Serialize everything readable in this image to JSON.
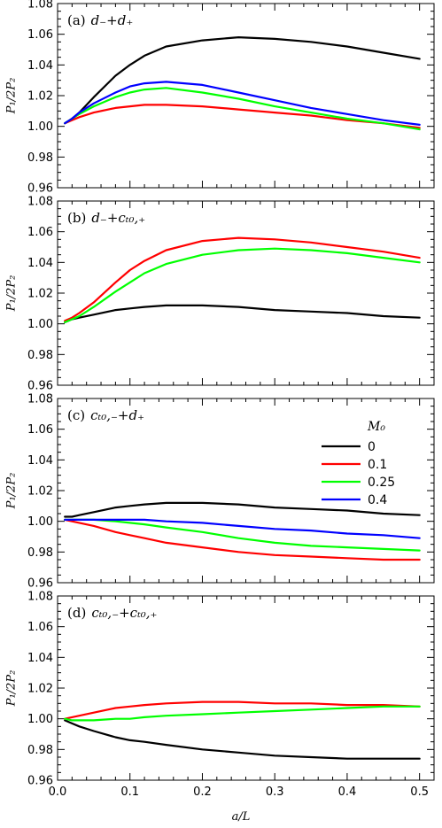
{
  "figure": {
    "xlabel": "a/L",
    "ylabel": "P₁/2P₂",
    "legend_title": "M₀"
  },
  "series_styles": [
    {
      "name": "0",
      "color": "#000000"
    },
    {
      "name": "0.1",
      "color": "#ff0000"
    },
    {
      "name": "0.25",
      "color": "#00ff00"
    },
    {
      "name": "0.4",
      "color": "#0000ff"
    }
  ],
  "chart_data": [
    {
      "type": "line",
      "panel_label": "(a)",
      "title": "d₋+d₊",
      "xlabel": "",
      "ylabel": "P₁/2P₂",
      "xlim": [
        0.0,
        0.52
      ],
      "ylim": [
        0.96,
        1.08
      ],
      "xticks": [
        0.0,
        0.1,
        0.2,
        0.3,
        0.4,
        0.5
      ],
      "yticks": [
        0.96,
        0.98,
        1.0,
        1.02,
        1.04,
        1.06,
        1.08
      ],
      "x": [
        0.01,
        0.02,
        0.03,
        0.05,
        0.08,
        0.1,
        0.12,
        0.15,
        0.2,
        0.25,
        0.3,
        0.35,
        0.4,
        0.45,
        0.5
      ],
      "series": [
        {
          "name": "0",
          "values": [
            1.002,
            1.005,
            1.009,
            1.019,
            1.033,
            1.04,
            1.046,
            1.052,
            1.056,
            1.058,
            1.057,
            1.055,
            1.052,
            1.048,
            1.044
          ]
        },
        {
          "name": "0.1",
          "values": [
            1.002,
            1.004,
            1.006,
            1.009,
            1.012,
            1.013,
            1.014,
            1.014,
            1.013,
            1.011,
            1.009,
            1.007,
            1.004,
            1.002,
            0.999
          ]
        },
        {
          "name": "0.25",
          "values": [
            1.002,
            1.005,
            1.008,
            1.013,
            1.019,
            1.022,
            1.024,
            1.025,
            1.022,
            1.018,
            1.013,
            1.009,
            1.005,
            1.002,
            0.998
          ]
        },
        {
          "name": "0.4",
          "values": [
            1.002,
            1.005,
            1.009,
            1.015,
            1.022,
            1.026,
            1.028,
            1.029,
            1.027,
            1.022,
            1.017,
            1.012,
            1.008,
            1.004,
            1.001
          ]
        }
      ]
    },
    {
      "type": "line",
      "panel_label": "(b)",
      "title": "d₋+cₜ₀,₊",
      "xlabel": "",
      "ylabel": "P₁/2P₂",
      "xlim": [
        0.0,
        0.52
      ],
      "ylim": [
        0.96,
        1.08
      ],
      "xticks": [
        0.0,
        0.1,
        0.2,
        0.3,
        0.4,
        0.5
      ],
      "yticks": [
        0.96,
        0.98,
        1.0,
        1.02,
        1.04,
        1.06,
        1.08
      ],
      "x": [
        0.01,
        0.02,
        0.03,
        0.05,
        0.08,
        0.1,
        0.12,
        0.15,
        0.2,
        0.25,
        0.3,
        0.35,
        0.4,
        0.45,
        0.5
      ],
      "series": [
        {
          "name": "0",
          "values": [
            1.001,
            1.003,
            1.004,
            1.006,
            1.009,
            1.01,
            1.011,
            1.012,
            1.012,
            1.011,
            1.009,
            1.008,
            1.007,
            1.005,
            1.004
          ]
        },
        {
          "name": "0.1",
          "values": [
            1.002,
            1.004,
            1.007,
            1.014,
            1.027,
            1.035,
            1.041,
            1.048,
            1.054,
            1.056,
            1.055,
            1.053,
            1.05,
            1.047,
            1.043
          ]
        },
        {
          "name": "0.25",
          "values": [
            1.001,
            1.003,
            1.005,
            1.011,
            1.021,
            1.027,
            1.033,
            1.039,
            1.045,
            1.048,
            1.049,
            1.048,
            1.046,
            1.043,
            1.04
          ]
        }
      ]
    },
    {
      "type": "line",
      "panel_label": "(c)",
      "title": "cₜ₀,₋+d₊",
      "xlabel": "",
      "ylabel": "P₁/2P₂",
      "xlim": [
        0.0,
        0.52
      ],
      "ylim": [
        0.96,
        1.08
      ],
      "xticks": [
        0.0,
        0.1,
        0.2,
        0.3,
        0.4,
        0.5
      ],
      "yticks": [
        0.96,
        0.98,
        1.0,
        1.02,
        1.04,
        1.06,
        1.08
      ],
      "legend": {
        "title": "M₀",
        "entries": [
          "0",
          "0.1",
          "0.25",
          "0.4"
        ],
        "placement": "upper-right"
      },
      "x": [
        0.01,
        0.02,
        0.03,
        0.05,
        0.08,
        0.1,
        0.12,
        0.15,
        0.2,
        0.25,
        0.3,
        0.35,
        0.4,
        0.45,
        0.5
      ],
      "series": [
        {
          "name": "0",
          "values": [
            1.003,
            1.003,
            1.004,
            1.006,
            1.009,
            1.01,
            1.011,
            1.012,
            1.012,
            1.011,
            1.009,
            1.008,
            1.007,
            1.005,
            1.004
          ]
        },
        {
          "name": "0.1",
          "values": [
            1.001,
            1.0,
            0.999,
            0.997,
            0.993,
            0.991,
            0.989,
            0.986,
            0.983,
            0.98,
            0.978,
            0.977,
            0.976,
            0.975,
            0.975
          ]
        },
        {
          "name": "0.25",
          "values": [
            1.001,
            1.001,
            1.001,
            1.001,
            1.0,
            0.999,
            0.998,
            0.996,
            0.993,
            0.989,
            0.986,
            0.984,
            0.983,
            0.982,
            0.981
          ]
        },
        {
          "name": "0.4",
          "values": [
            1.001,
            1.001,
            1.001,
            1.001,
            1.001,
            1.001,
            1.001,
            1.0,
            0.999,
            0.997,
            0.995,
            0.994,
            0.992,
            0.991,
            0.989
          ]
        }
      ]
    },
    {
      "type": "line",
      "panel_label": "(d)",
      "title": "cₜ₀,₋+cₜ₀,₊",
      "xlabel": "a/L",
      "ylabel": "P₁/2P₂",
      "xlim": [
        0.0,
        0.52
      ],
      "ylim": [
        0.96,
        1.08
      ],
      "xticks": [
        0.0,
        0.1,
        0.2,
        0.3,
        0.4,
        0.5
      ],
      "yticks": [
        0.96,
        0.98,
        1.0,
        1.02,
        1.04,
        1.06,
        1.08
      ],
      "x": [
        0.01,
        0.02,
        0.03,
        0.05,
        0.08,
        0.1,
        0.12,
        0.15,
        0.2,
        0.25,
        0.3,
        0.35,
        0.4,
        0.45,
        0.5
      ],
      "series": [
        {
          "name": "0",
          "values": [
            0.999,
            0.997,
            0.995,
            0.992,
            0.988,
            0.986,
            0.985,
            0.983,
            0.98,
            0.978,
            0.976,
            0.975,
            0.974,
            0.974,
            0.974
          ]
        },
        {
          "name": "0.1",
          "values": [
            1.0,
            1.001,
            1.002,
            1.004,
            1.007,
            1.008,
            1.009,
            1.01,
            1.011,
            1.011,
            1.01,
            1.01,
            1.009,
            1.009,
            1.008
          ]
        },
        {
          "name": "0.25",
          "values": [
            1.0,
            0.999,
            0.999,
            0.999,
            1.0,
            1.0,
            1.001,
            1.002,
            1.003,
            1.004,
            1.005,
            1.006,
            1.007,
            1.008,
            1.008
          ]
        }
      ]
    }
  ]
}
